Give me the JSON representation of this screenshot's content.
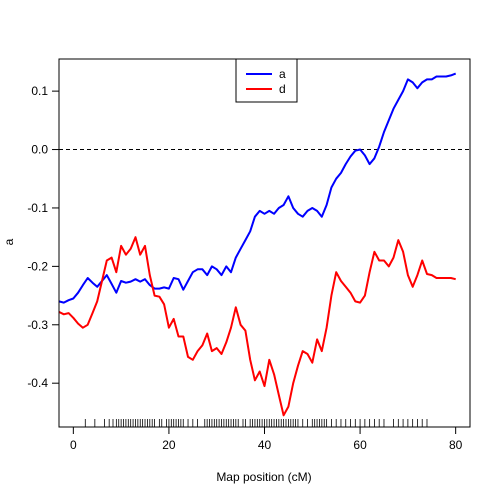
{
  "chart_data": {
    "type": "line",
    "title": "",
    "xlabel": "Map position (cM)",
    "ylabel": "a",
    "xlim": [
      -3,
      83
    ],
    "ylim": [
      -0.475,
      0.155
    ],
    "xticks": [
      0,
      20,
      40,
      60,
      80
    ],
    "yticks": [
      0.1,
      0.0,
      -0.1,
      -0.2,
      -0.3,
      -0.4
    ],
    "ytick_labels": [
      "0.1",
      "0.0",
      "-0.1",
      "-0.2",
      "-0.3",
      "-0.4"
    ],
    "reference_line": {
      "y": 0.0,
      "style": "dashed",
      "color": "#000000"
    },
    "legend": {
      "position": "top-center",
      "entries": [
        "a",
        "d"
      ]
    },
    "series": [
      {
        "name": "a",
        "color": "#0000ff",
        "x": [
          -3,
          -2,
          -1,
          0,
          1,
          2,
          3,
          4,
          5,
          6,
          7,
          8,
          9,
          10,
          11,
          12,
          13,
          14,
          15,
          16,
          17,
          18,
          19,
          20,
          21,
          22,
          23,
          24,
          25,
          26,
          27,
          28,
          29,
          30,
          31,
          32,
          33,
          34,
          35,
          36,
          37,
          38,
          39,
          40,
          41,
          42,
          43,
          44,
          45,
          46,
          47,
          48,
          49,
          50,
          51,
          52,
          53,
          54,
          55,
          56,
          57,
          58,
          59,
          60,
          61,
          62,
          63,
          64,
          65,
          66,
          67,
          68,
          69,
          70,
          71,
          72,
          73,
          74,
          75,
          76,
          77,
          78,
          79,
          80
        ],
        "y": [
          -0.26,
          -0.262,
          -0.258,
          -0.255,
          -0.245,
          -0.232,
          -0.22,
          -0.228,
          -0.235,
          -0.225,
          -0.215,
          -0.23,
          -0.245,
          -0.225,
          -0.228,
          -0.226,
          -0.222,
          -0.226,
          -0.222,
          -0.232,
          -0.238,
          -0.238,
          -0.236,
          -0.238,
          -0.22,
          -0.222,
          -0.24,
          -0.225,
          -0.21,
          -0.205,
          -0.205,
          -0.215,
          -0.2,
          -0.205,
          -0.215,
          -0.2,
          -0.21,
          -0.185,
          -0.17,
          -0.155,
          -0.14,
          -0.115,
          -0.105,
          -0.11,
          -0.105,
          -0.11,
          -0.1,
          -0.095,
          -0.08,
          -0.1,
          -0.11,
          -0.115,
          -0.105,
          -0.1,
          -0.105,
          -0.115,
          -0.095,
          -0.065,
          -0.05,
          -0.04,
          -0.025,
          -0.012,
          -0.002,
          0.0,
          -0.01,
          -0.025,
          -0.015,
          0.005,
          0.03,
          0.05,
          0.07,
          0.085,
          0.1,
          0.12,
          0.115,
          0.105,
          0.115,
          0.12,
          0.12,
          0.125,
          0.125,
          0.125,
          0.127,
          0.13
        ]
      },
      {
        "name": "d",
        "color": "#ff0000",
        "x": [
          -3,
          -2,
          -1,
          0,
          1,
          2,
          3,
          4,
          5,
          6,
          7,
          8,
          9,
          10,
          11,
          12,
          13,
          14,
          15,
          16,
          17,
          18,
          19,
          20,
          21,
          22,
          23,
          24,
          25,
          26,
          27,
          28,
          29,
          30,
          31,
          32,
          33,
          34,
          35,
          36,
          37,
          38,
          39,
          40,
          41,
          42,
          43,
          44,
          45,
          46,
          47,
          48,
          49,
          50,
          51,
          52,
          53,
          54,
          55,
          56,
          57,
          58,
          59,
          60,
          61,
          62,
          63,
          64,
          65,
          66,
          67,
          68,
          69,
          70,
          71,
          72,
          73,
          74,
          75,
          76,
          77,
          78,
          79,
          80
        ],
        "y": [
          -0.278,
          -0.282,
          -0.28,
          -0.288,
          -0.298,
          -0.305,
          -0.3,
          -0.28,
          -0.26,
          -0.225,
          -0.19,
          -0.185,
          -0.21,
          -0.165,
          -0.18,
          -0.17,
          -0.15,
          -0.18,
          -0.165,
          -0.215,
          -0.25,
          -0.252,
          -0.265,
          -0.305,
          -0.29,
          -0.32,
          -0.32,
          -0.355,
          -0.36,
          -0.345,
          -0.335,
          -0.315,
          -0.345,
          -0.34,
          -0.35,
          -0.33,
          -0.305,
          -0.27,
          -0.3,
          -0.31,
          -0.36,
          -0.395,
          -0.38,
          -0.405,
          -0.36,
          -0.385,
          -0.42,
          -0.455,
          -0.44,
          -0.4,
          -0.37,
          -0.345,
          -0.35,
          -0.365,
          -0.325,
          -0.345,
          -0.305,
          -0.25,
          -0.21,
          -0.225,
          -0.235,
          -0.245,
          -0.26,
          -0.262,
          -0.25,
          -0.21,
          -0.175,
          -0.19,
          -0.19,
          -0.2,
          -0.185,
          -0.155,
          -0.175,
          -0.215,
          -0.235,
          -0.215,
          -0.19,
          -0.213,
          -0.215,
          -0.22,
          -0.22,
          -0.22,
          -0.22,
          -0.222
        ]
      }
    ],
    "rug": [
      2.5,
      4.5,
      6.5,
      7.5,
      8.3,
      9,
      9.5,
      10,
      10.5,
      11,
      11.5,
      12,
      12.5,
      13,
      13.5,
      14,
      14.5,
      15,
      15.5,
      16,
      16.5,
      17,
      18,
      18.5,
      19.5,
      20,
      20.5,
      21,
      21.5,
      22,
      22.5,
      23,
      24,
      25,
      26,
      27.5,
      28,
      28.5,
      29,
      29.5,
      30,
      30.5,
      31,
      31.5,
      32,
      32.5,
      33,
      33.5,
      34,
      34.5,
      35.5,
      36,
      37,
      37.5,
      38,
      38.5,
      39,
      39.5,
      40,
      40.5,
      41,
      41.5,
      42,
      42.5,
      43,
      43.5,
      44,
      44.5,
      45,
      45.5,
      46,
      46.5,
      47,
      48,
      49,
      50,
      50.5,
      51,
      51.5,
      52,
      52.5,
      53,
      54,
      55,
      56,
      57,
      58,
      59,
      60,
      61,
      62,
      63,
      64,
      65,
      67,
      68,
      69,
      70,
      71,
      72,
      73,
      74
    ]
  }
}
